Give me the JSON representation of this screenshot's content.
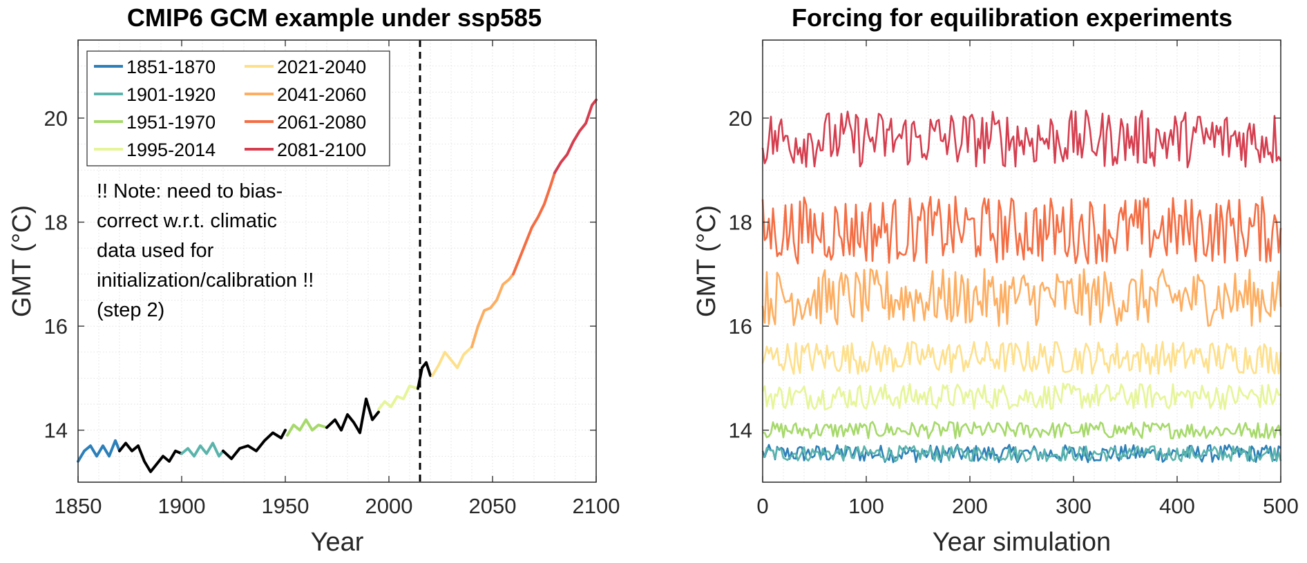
{
  "chart_data": [
    {
      "type": "line",
      "title": "CMIP6 GCM example under ssp585",
      "xlabel": "Year",
      "ylabel": "GMT (°C)",
      "xlim": [
        1850,
        2100
      ],
      "ylim": [
        13,
        21.5
      ],
      "xticks": [
        1850,
        1900,
        1950,
        2000,
        2050,
        2100
      ],
      "yticks": [
        14,
        16,
        18,
        20
      ],
      "grid": true,
      "legend_position": "top-left",
      "vline": {
        "x": 2015,
        "style": "dashed",
        "color": "#000000"
      },
      "annotation": [
        "!! Note: need to bias-",
        "correct w.r.t. climatic",
        "data used for",
        "initialization/calibration !!",
        "(step 2)"
      ],
      "series": [
        {
          "name": "1851-1870",
          "color": "#2c7fb8",
          "x": [
            1850,
            1853,
            1856,
            1859,
            1862,
            1865,
            1868,
            1870
          ],
          "y": [
            13.4,
            13.6,
            13.7,
            13.5,
            13.7,
            13.5,
            13.8,
            13.6
          ]
        },
        {
          "name": "",
          "color": "#000000",
          "x": [
            1870,
            1873,
            1876,
            1879,
            1882,
            1885,
            1888,
            1891,
            1894,
            1897,
            1900
          ],
          "y": [
            13.6,
            13.75,
            13.6,
            13.7,
            13.4,
            13.2,
            13.35,
            13.5,
            13.4,
            13.6,
            13.55
          ]
        },
        {
          "name": "1901-1920",
          "color": "#5ab4ac",
          "x": [
            1900,
            1903,
            1906,
            1909,
            1912,
            1915,
            1918,
            1920
          ],
          "y": [
            13.55,
            13.65,
            13.5,
            13.7,
            13.55,
            13.75,
            13.5,
            13.6
          ]
        },
        {
          "name": "",
          "color": "#000000",
          "x": [
            1920,
            1924,
            1928,
            1932,
            1936,
            1940,
            1944,
            1948,
            1950
          ],
          "y": [
            13.6,
            13.45,
            13.65,
            13.7,
            13.6,
            13.8,
            13.95,
            13.85,
            14.0
          ]
        },
        {
          "name": "1951-1970",
          "color": "#a6d96a",
          "x": [
            1951,
            1954,
            1957,
            1960,
            1963,
            1966,
            1970
          ],
          "y": [
            13.9,
            14.1,
            14.0,
            14.2,
            14.0,
            14.1,
            14.05
          ]
        },
        {
          "name": "",
          "color": "#000000",
          "x": [
            1970,
            1974,
            1977,
            1980,
            1983,
            1986,
            1989,
            1992,
            1995
          ],
          "y": [
            14.05,
            14.2,
            14.0,
            14.3,
            14.15,
            13.95,
            14.6,
            14.2,
            14.35
          ]
        },
        {
          "name": "1995-2014",
          "color": "#e6f598",
          "x": [
            1995,
            1998,
            2001,
            2004,
            2007,
            2010,
            2014
          ],
          "y": [
            14.4,
            14.55,
            14.45,
            14.65,
            14.6,
            14.85,
            14.8
          ]
        },
        {
          "name": "",
          "color": "#000000",
          "x": [
            2014,
            2016,
            2018,
            2020
          ],
          "y": [
            14.8,
            15.2,
            15.3,
            15.05
          ]
        },
        {
          "name": "2021-2040",
          "color": "#fee08b",
          "x": [
            2021,
            2024,
            2027,
            2030,
            2033,
            2036,
            2040
          ],
          "y": [
            15.05,
            15.25,
            15.5,
            15.35,
            15.2,
            15.45,
            15.6
          ]
        },
        {
          "name": "2041-2060",
          "color": "#fdae61",
          "x": [
            2040,
            2043,
            2046,
            2049,
            2052,
            2055,
            2058,
            2060
          ],
          "y": [
            15.6,
            16.0,
            16.3,
            16.35,
            16.5,
            16.8,
            16.9,
            17.0
          ]
        },
        {
          "name": "2061-2080",
          "color": "#f46d43",
          "x": [
            2060,
            2063,
            2066,
            2069,
            2072,
            2075,
            2078,
            2080
          ],
          "y": [
            17.0,
            17.3,
            17.6,
            17.9,
            18.1,
            18.35,
            18.7,
            18.95
          ]
        },
        {
          "name": "2081-2100",
          "color": "#d53e4f",
          "x": [
            2080,
            2083,
            2086,
            2089,
            2092,
            2095,
            2098,
            2100
          ],
          "y": [
            18.95,
            19.15,
            19.3,
            19.55,
            19.75,
            19.9,
            20.25,
            20.35
          ]
        }
      ],
      "legend": [
        {
          "name": "1851-1870",
          "color": "#2c7fb8"
        },
        {
          "name": "1901-1920",
          "color": "#5ab4ac"
        },
        {
          "name": "1951-1970",
          "color": "#a6d96a"
        },
        {
          "name": "1995-2014",
          "color": "#e6f598"
        },
        {
          "name": "2021-2040",
          "color": "#fee08b"
        },
        {
          "name": "2041-2060",
          "color": "#fdae61"
        },
        {
          "name": "2061-2080",
          "color": "#f46d43"
        },
        {
          "name": "2081-2100",
          "color": "#d53e4f"
        }
      ]
    },
    {
      "type": "line",
      "title": "Forcing for equilibration experiments",
      "xlabel": "Year simulation",
      "ylabel": "GMT (°C)",
      "xlim": [
        0,
        500
      ],
      "ylim": [
        13,
        21.5
      ],
      "xticks": [
        0,
        100,
        200,
        300,
        400,
        500
      ],
      "yticks": [
        14,
        16,
        18,
        20
      ],
      "grid": true,
      "series": [
        {
          "period": "1851-1870",
          "color": "#2c7fb8",
          "mean": 13.55,
          "amplitude": 0.17,
          "x_range": [
            0,
            500
          ]
        },
        {
          "period": "1901-1920",
          "color": "#5ab4ac",
          "mean": 13.55,
          "amplitude": 0.15,
          "x_range": [
            0,
            500
          ]
        },
        {
          "period": "1951-1970",
          "color": "#a6d96a",
          "mean": 14.0,
          "amplitude": 0.16,
          "x_range": [
            0,
            500
          ]
        },
        {
          "period": "1995-2014",
          "color": "#e6f598",
          "mean": 14.65,
          "amplitude": 0.25,
          "x_range": [
            0,
            500
          ]
        },
        {
          "period": "2021-2040",
          "color": "#fee08b",
          "mean": 15.4,
          "amplitude": 0.32,
          "x_range": [
            0,
            500
          ]
        },
        {
          "period": "2041-2060",
          "color": "#fdae61",
          "mean": 16.55,
          "amplitude": 0.55,
          "x_range": [
            0,
            500
          ]
        },
        {
          "period": "2061-2080",
          "color": "#f46d43",
          "mean": 17.85,
          "amplitude": 0.65,
          "x_range": [
            0,
            500
          ]
        },
        {
          "period": "2081-2100",
          "color": "#d53e4f",
          "mean": 19.6,
          "amplitude": 0.55,
          "x_range": [
            0,
            500
          ]
        }
      ]
    }
  ]
}
